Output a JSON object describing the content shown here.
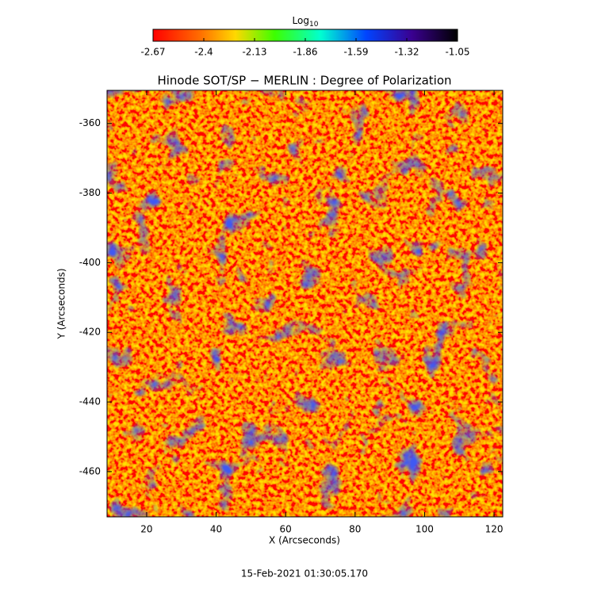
{
  "chart_data": {
    "type": "heatmap",
    "title": "Hinode SOT/SP − MERLIN : Degree of Polarization",
    "x_label": "X (Arcseconds)",
    "y_label": "Y (Arcseconds)",
    "footer": "15-Feb-2021 01:30:05.170",
    "colorbar_label": "Log",
    "colorbar_label_sub": "10",
    "clim": [
      -2.67,
      -1.05
    ],
    "cticks": [
      -2.67,
      -2.4,
      -2.13,
      -1.86,
      -1.59,
      -1.32,
      -1.05
    ],
    "xlim": [
      8.6,
      122.5
    ],
    "xticks": [
      20,
      40,
      60,
      80,
      100,
      120
    ],
    "ylim": [
      -473,
      -350.5
    ],
    "yticks": [
      -360,
      -380,
      -400,
      -420,
      -440,
      -460
    ]
  }
}
